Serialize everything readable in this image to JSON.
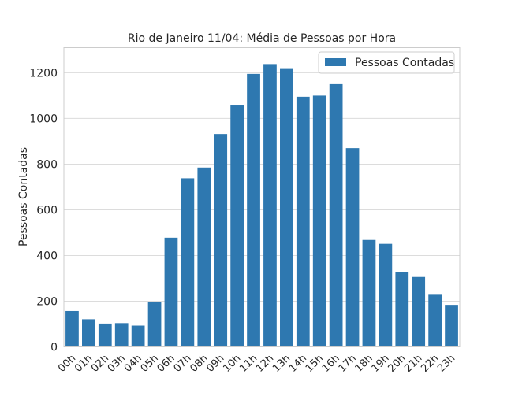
{
  "chart_data": {
    "type": "bar",
    "title": "Rio de Janeiro 11/04: Média de Pessoas por Hora",
    "xlabel": "",
    "ylabel": "Pessoas Contadas",
    "ylim": [
      0,
      1310
    ],
    "yticks": [
      0,
      200,
      400,
      600,
      800,
      1000,
      1200
    ],
    "grid": true,
    "legend_position": "top-right",
    "categories": [
      "00h",
      "01h",
      "02h",
      "03h",
      "04h",
      "05h",
      "06h",
      "07h",
      "08h",
      "09h",
      "10h",
      "11h",
      "12h",
      "13h",
      "14h",
      "15h",
      "16h",
      "17h",
      "18h",
      "19h",
      "20h",
      "21h",
      "22h",
      "23h"
    ],
    "series": [
      {
        "name": "Pessoas Contadas",
        "color": "#2e78b0",
        "values": [
          157,
          121,
          102,
          104,
          93,
          197,
          478,
          738,
          785,
          932,
          1060,
          1195,
          1238,
          1220,
          1095,
          1100,
          1150,
          870,
          468,
          451,
          327,
          306,
          228,
          184
        ]
      }
    ]
  }
}
